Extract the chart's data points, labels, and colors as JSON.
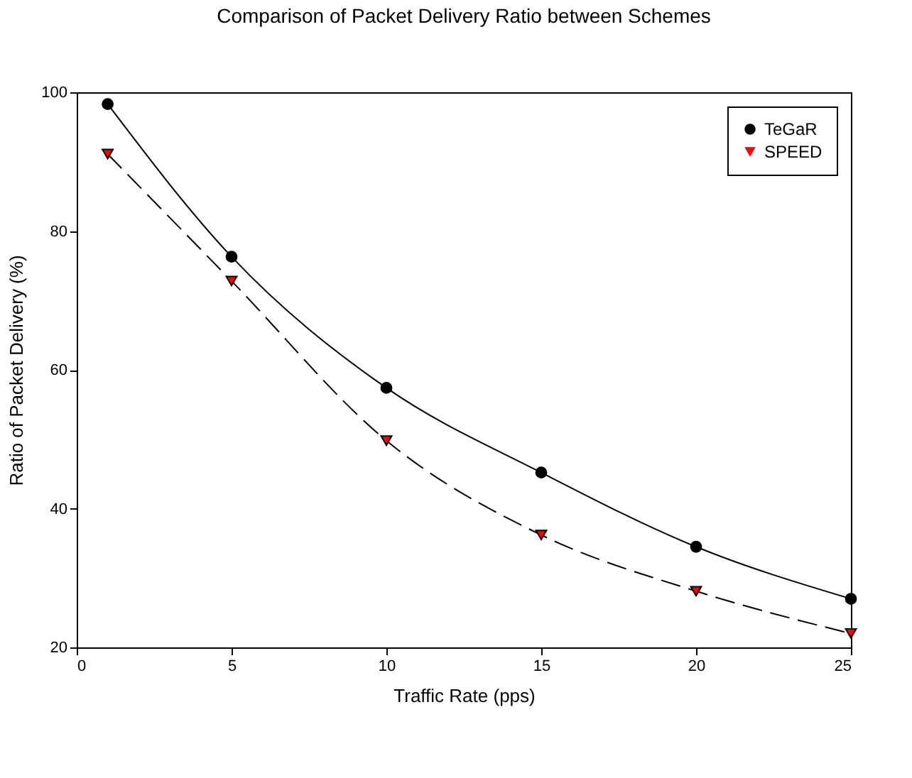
{
  "chart_data": {
    "type": "line",
    "title": "Comparison of Packet Delivery Ratio between Schemes",
    "xlabel": "Traffic Rate (pps)",
    "ylabel": "Ratio of Packet Delivery (%)",
    "x": [
      1,
      5,
      10,
      15,
      20,
      25
    ],
    "series": [
      {
        "name": "TeGaR",
        "color": "#000000",
        "marker": "circle",
        "line_style": "solid",
        "values": [
          98.3,
          76.3,
          57.4,
          45.2,
          34.5,
          27.0
        ]
      },
      {
        "name": "SPEED",
        "color": "#ff0000",
        "marker": "triangle",
        "line_style": "dashed",
        "values": [
          91.1,
          72.8,
          49.8,
          36.2,
          28.1,
          22.0
        ]
      }
    ],
    "xlim": [
      0,
      25
    ],
    "xticks": [
      0,
      5,
      10,
      15,
      20,
      25
    ],
    "ylim": [
      20,
      100
    ],
    "yticks": [
      20,
      40,
      60,
      80,
      100
    ],
    "grid": false,
    "legend": "top right"
  }
}
